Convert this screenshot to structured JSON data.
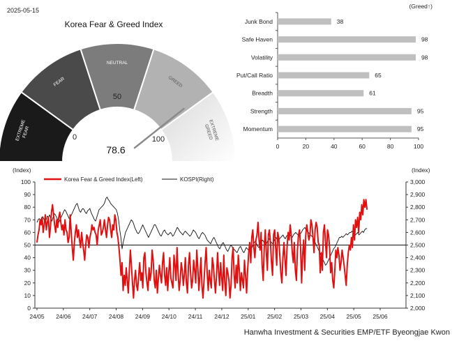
{
  "date": "2025-05-15",
  "gauge": {
    "title": "Korea Fear & Greed Index",
    "value": 78.6,
    "value_label": "78.6",
    "min_label": "0",
    "mid_label": "50",
    "max_label": "100",
    "range": [
      0,
      100
    ],
    "zones": [
      {
        "label": "EXTREME FEAR",
        "color": "#1a1a1a"
      },
      {
        "label": "FEAR",
        "color": "#4a4a4a"
      },
      {
        "label": "NEUTRAL",
        "color": "#7c7c7c"
      },
      {
        "label": "GREED",
        "color": "#b2b2b2"
      },
      {
        "label": "EXTREME GREED",
        "color": "#e6e6e6"
      }
    ]
  },
  "components": {
    "type": "bar",
    "unit_label": "(Greed↑)",
    "categories": [
      "Junk Bond",
      "Safe Haven",
      "Volatility",
      "Put/Call Ratio",
      "Breadth",
      "Strength",
      "Momentum"
    ],
    "values": [
      38,
      98,
      98,
      65,
      61,
      95,
      95
    ],
    "xlim": [
      0,
      100
    ],
    "xticks": [
      "0",
      "20",
      "40",
      "60",
      "80",
      "100"
    ],
    "bar_color": "#bfbfbf"
  },
  "chart_data": {
    "type": "line",
    "left_axis_label": "(Index)",
    "right_axis_label": "(Index)",
    "ylim_left": [
      0,
      100
    ],
    "ylim_right": [
      2000,
      3000
    ],
    "yticks_left": [
      "0",
      "10",
      "20",
      "30",
      "40",
      "50",
      "60",
      "70",
      "80",
      "90",
      "100"
    ],
    "yticks_right": [
      "2,000",
      "2,100",
      "2,200",
      "2,300",
      "2,400",
      "2,500",
      "2,600",
      "2,700",
      "2,800",
      "2,900",
      "3,000"
    ],
    "reference_line": 50,
    "x_ticks": [
      "24/05",
      "24/06",
      "24/07",
      "24/08",
      "24/09",
      "24/10",
      "24/11",
      "24/12",
      "25/01",
      "25/02",
      "25/03",
      "25/04",
      "25/05",
      "25/06"
    ],
    "series": [
      {
        "name": "Korea Fear & Greed Index(Left)",
        "axis": "left",
        "color": "#e01010",
        "values": [
          52,
          58,
          62,
          70,
          66,
          72,
          60,
          66,
          74,
          62,
          68,
          72,
          56,
          64,
          76,
          82,
          74,
          66,
          60,
          70,
          64,
          72,
          76,
          68,
          62,
          66,
          58,
          70,
          62,
          60,
          52,
          56,
          74,
          60,
          48,
          38,
          52,
          60,
          66,
          56,
          62,
          54,
          48,
          60,
          52,
          46,
          38,
          50,
          58,
          56,
          48,
          56,
          60,
          66,
          62,
          64,
          60,
          58,
          50,
          62,
          66,
          70,
          58,
          60,
          64,
          70,
          62,
          56,
          66,
          72,
          70,
          62,
          56,
          66,
          62,
          74,
          70,
          60,
          56,
          48,
          38,
          26,
          36,
          14,
          26,
          18,
          32,
          22,
          12,
          30,
          46,
          34,
          20,
          8,
          22,
          30,
          18,
          14,
          26,
          36,
          22,
          28,
          16,
          40,
          44,
          28,
          20,
          14,
          32,
          22,
          28,
          46,
          38,
          22,
          16,
          30,
          12,
          24,
          34,
          26,
          20,
          36,
          44,
          26,
          18,
          32,
          14,
          28,
          40,
          24,
          20,
          16,
          42,
          34,
          22,
          48,
          28,
          14,
          22,
          36,
          30,
          18,
          26,
          40,
          20,
          12,
          34,
          44,
          28,
          16,
          22,
          38,
          30,
          20,
          46,
          32,
          14,
          26,
          40,
          18,
          8,
          22,
          36,
          48,
          28,
          14,
          30,
          22,
          16,
          40,
          34,
          22,
          12,
          26,
          44,
          30,
          18,
          36,
          24,
          14,
          42,
          20,
          10,
          32,
          28,
          22,
          8,
          18,
          40,
          48,
          26,
          16,
          34,
          20,
          42,
          30,
          14,
          28,
          22,
          16,
          38,
          26,
          12,
          30,
          44,
          52,
          36,
          56,
          62,
          48,
          40,
          54,
          58,
          68,
          54,
          46,
          60,
          34,
          22,
          48,
          62,
          44,
          30,
          58,
          62,
          52,
          36,
          26,
          58,
          62,
          48,
          34,
          60,
          56,
          42,
          28,
          20,
          40,
          52,
          38,
          26,
          48,
          60,
          54,
          66,
          58,
          44,
          36,
          52,
          30,
          22,
          46,
          58,
          62,
          48,
          20,
          42,
          54,
          30,
          58,
          66,
          60,
          54,
          58,
          70,
          66,
          56,
          44,
          62,
          68,
          64,
          52,
          50,
          28,
          44,
          30,
          60,
          66,
          52,
          40,
          62,
          58,
          48,
          28,
          36,
          22,
          16,
          30,
          46,
          40,
          48,
          42,
          30,
          36,
          46,
          40,
          34,
          26,
          18,
          34,
          44,
          50,
          46,
          56,
          48,
          66,
          54,
          70,
          64,
          72,
          60,
          76,
          70,
          82,
          74,
          86,
          80,
          86,
          78
        ]
      },
      {
        "name": "KOSPI(Right)",
        "axis": "right",
        "color": "#111111",
        "values": [
          2680,
          2700,
          2710,
          2690,
          2715,
          2725,
          2705,
          2680,
          2700,
          2730,
          2720,
          2740,
          2710,
          2690,
          2720,
          2750,
          2740,
          2720,
          2700,
          2680,
          2700,
          2720,
          2740,
          2760,
          2780,
          2770,
          2750,
          2730,
          2710,
          2720,
          2740,
          2760,
          2780,
          2800,
          2820,
          2830,
          2800,
          2770,
          2760,
          2780,
          2790,
          2780,
          2760,
          2750,
          2770,
          2780,
          2790,
          2760,
          2740,
          2720,
          2700,
          2690,
          2720,
          2750,
          2780,
          2790,
          2800,
          2810,
          2820,
          2840,
          2870,
          2880,
          2860,
          2850,
          2830,
          2820,
          2810,
          2800,
          2790,
          2780,
          2750,
          2700,
          2620,
          2560,
          2470,
          2520,
          2560,
          2600,
          2620,
          2640,
          2660,
          2680,
          2700,
          2690,
          2670,
          2640,
          2620,
          2600,
          2590,
          2600,
          2620,
          2640,
          2660,
          2640,
          2620,
          2600,
          2580,
          2560,
          2580,
          2600,
          2620,
          2640,
          2660,
          2660,
          2640,
          2620,
          2600,
          2580,
          2570,
          2590,
          2610,
          2620,
          2600,
          2590,
          2580,
          2590,
          2600,
          2590,
          2570,
          2580,
          2600,
          2620,
          2640,
          2630,
          2610,
          2600,
          2590,
          2580,
          2600,
          2610,
          2600,
          2590,
          2580,
          2570,
          2580,
          2600,
          2620,
          2610,
          2600,
          2580,
          2560,
          2550,
          2570,
          2590,
          2600,
          2590,
          2580,
          2560,
          2540,
          2530,
          2520,
          2510,
          2530,
          2550,
          2560,
          2540,
          2520,
          2500,
          2480,
          2470,
          2490,
          2510,
          2520,
          2500,
          2480,
          2460,
          2450,
          2470,
          2490,
          2500,
          2480,
          2470,
          2460,
          2450,
          2440,
          2460,
          2480,
          2490,
          2470,
          2450,
          2440,
          2460,
          2480,
          2470,
          2460,
          2450,
          2470,
          2480,
          2500,
          2520,
          2530,
          2510,
          2490,
          2480,
          2500,
          2520,
          2540,
          2530,
          2510,
          2500,
          2520,
          2540,
          2550,
          2530,
          2520,
          2510,
          2530,
          2550,
          2560,
          2540,
          2530,
          2550,
          2560,
          2570,
          2580,
          2560,
          2550,
          2570,
          2580,
          2590,
          2580,
          2570,
          2560,
          2580,
          2590,
          2600,
          2590,
          2580,
          2570,
          2590,
          2600,
          2620,
          2630,
          2640,
          2620,
          2610,
          2600,
          2590,
          2580,
          2570,
          2560,
          2540,
          2520,
          2500,
          2480,
          2460,
          2440,
          2420,
          2400,
          2380,
          2360,
          2340,
          2350,
          2370,
          2390,
          2410,
          2430,
          2450,
          2470,
          2480,
          2500,
          2520,
          2540,
          2560,
          2560,
          2570,
          2560,
          2570,
          2580,
          2590,
          2580,
          2590,
          2600,
          2600,
          2610,
          2600,
          2590,
          2580,
          2590,
          2600,
          2580,
          2590,
          2600,
          2610,
          2600,
          2620,
          2630,
          2630
        ]
      }
    ]
  },
  "footer": "Hanwha Investment & Securities EMP/ETF Byeongjae Kwon"
}
